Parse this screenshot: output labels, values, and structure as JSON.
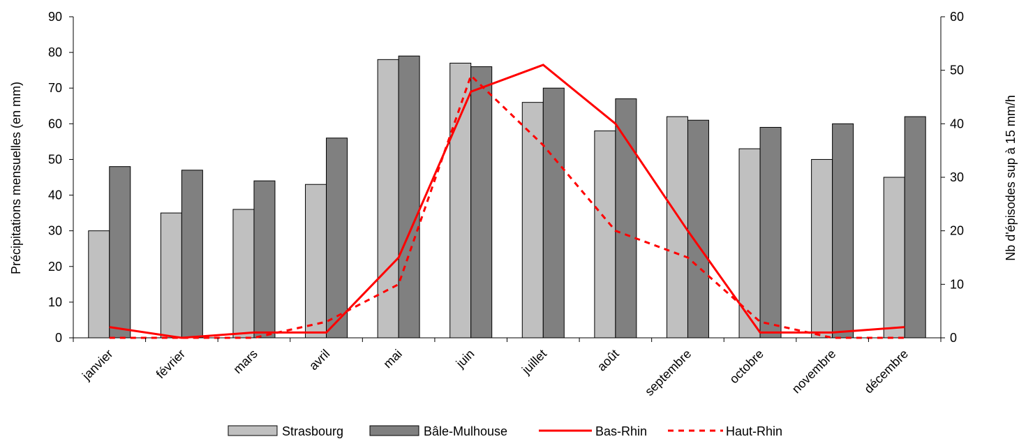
{
  "chart_data": {
    "type": "bar",
    "categories": [
      "janvier",
      "février",
      "mars",
      "avril",
      "mai",
      "juin",
      "juillet",
      "août",
      "septembre",
      "octobre",
      "novembre",
      "décembre"
    ],
    "bar_series": [
      {
        "name": "Strasbourg",
        "axis": "left",
        "color": "#c0c0c0",
        "values": [
          30,
          35,
          36,
          43,
          78,
          77,
          66,
          58,
          62,
          53,
          50,
          45
        ]
      },
      {
        "name": "Bâle-Mulhouse",
        "axis": "left",
        "color": "#808080",
        "values": [
          48,
          47,
          44,
          56,
          79,
          76,
          70,
          67,
          61,
          59,
          60,
          62
        ]
      }
    ],
    "line_series": [
      {
        "name": "Bas-Rhin",
        "axis": "right",
        "color": "#ff0000",
        "style": "solid",
        "values": [
          2,
          0,
          1,
          1,
          15,
          46,
          51,
          40,
          20,
          1,
          1,
          2
        ]
      },
      {
        "name": "Haut-Rhin",
        "axis": "right",
        "color": "#ff0000",
        "style": "dashed",
        "values": [
          0,
          0,
          0,
          3,
          10,
          49,
          36,
          20,
          15,
          3,
          0,
          0
        ]
      }
    ],
    "ylabel": "Précipitations mensuelles (en mm)",
    "ylabel_right": "Nb d'épisodes sup à 15 mm/h",
    "ylim": [
      0,
      90
    ],
    "ylim_right": [
      0,
      60
    ],
    "yticks": [
      "0",
      "10",
      "20",
      "30",
      "40",
      "50",
      "60",
      "70",
      "80",
      "90"
    ],
    "yticks_right": [
      "0",
      "10",
      "20",
      "30",
      "40",
      "50",
      "60"
    ],
    "legend_position": "bottom",
    "grid": false
  }
}
